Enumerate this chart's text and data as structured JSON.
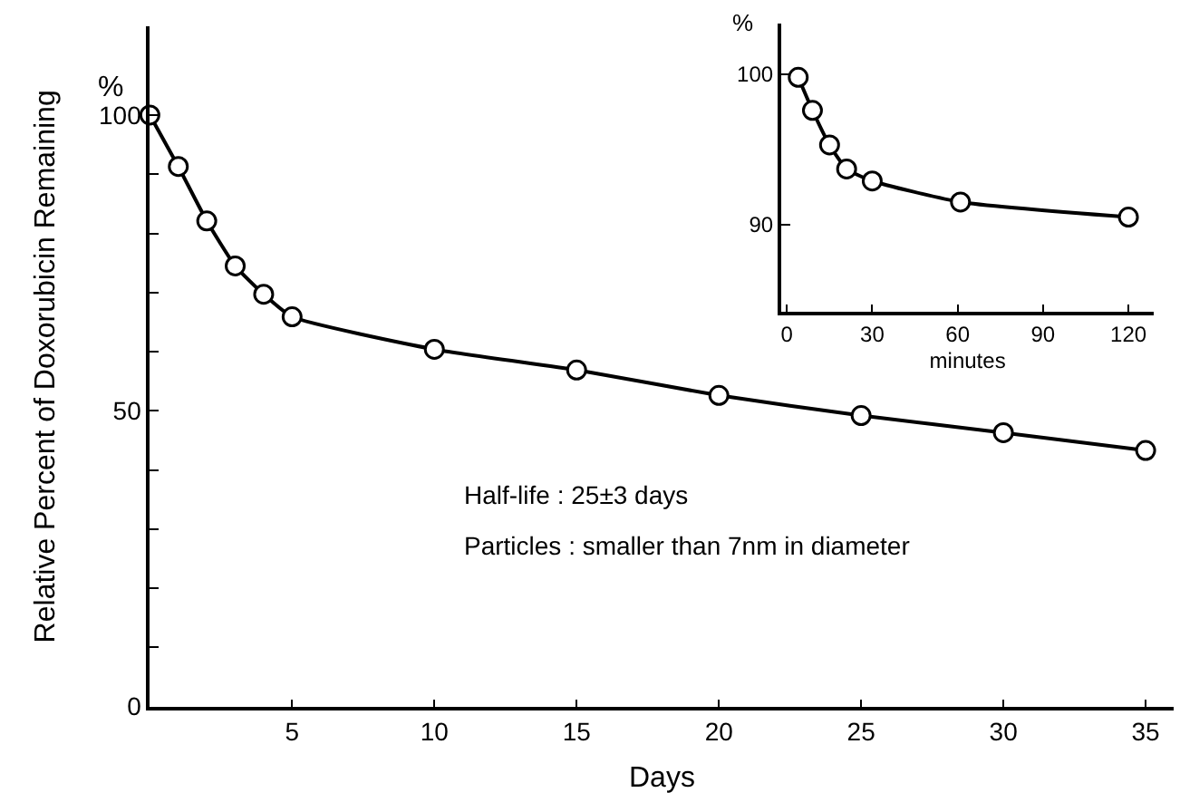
{
  "chart_data": [
    {
      "type": "line",
      "xlabel": "Days",
      "ylabel": "Relative Percent of Doxorubicin Remaining",
      "annotations": [
        "%",
        "Half-life : 25±3 days",
        "Particles : smaller than 7nm in diameter"
      ],
      "x": [
        0,
        1,
        2,
        3,
        4,
        5,
        10,
        15,
        20,
        25,
        30,
        35
      ],
      "series": [
        {
          "color": "#000000",
          "values": [
            100,
            91.3,
            82.1,
            74.5,
            69.7,
            65.9,
            60.4,
            56.9,
            52.6,
            49.2,
            46.3,
            43.3
          ]
        }
      ],
      "xlim": [
        0,
        36
      ],
      "xticks": [
        5,
        10,
        15,
        20,
        25,
        30,
        35
      ],
      "ylim": [
        0,
        115
      ],
      "yticks": [
        0,
        {
          "value": 10,
          "label": null
        },
        {
          "value": 20,
          "label": null
        },
        {
          "value": 30,
          "label": null
        },
        {
          "value": 40,
          "label": null
        },
        50,
        {
          "value": 60,
          "label": null
        },
        {
          "value": 70,
          "label": null
        },
        {
          "value": 80,
          "label": null
        },
        {
          "value": 90,
          "label": null
        },
        100
      ],
      "marker": "circle",
      "line_style": "solid"
    },
    {
      "type": "line",
      "xlabel": "minutes",
      "annotations": [
        "%"
      ],
      "x": [
        4,
        9,
        15,
        21,
        30,
        61,
        120
      ],
      "series": [
        {
          "color": "#000000",
          "values": [
            99.8,
            97.6,
            95.3,
            93.7,
            92.9,
            91.5,
            90.5
          ]
        }
      ],
      "xlim": [
        -2,
        129
      ],
      "xticks": [
        0,
        30,
        60,
        90,
        120
      ],
      "ylim": [
        84.2,
        103.4
      ],
      "yticks": [
        90,
        100
      ],
      "marker": "circle",
      "line_style": "solid"
    }
  ]
}
